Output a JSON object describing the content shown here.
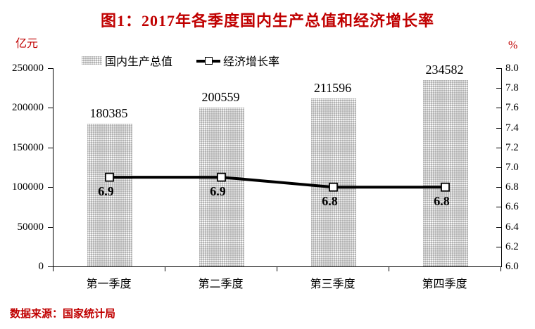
{
  "title": "图1：2017年各季度国内生产总值和经济增长率",
  "source": "数据来源：国家统计局",
  "legend": [
    {
      "label": "国内生产总值",
      "type": "bar",
      "swatch": "gray-stipple"
    },
    {
      "label": "经济增长率",
      "type": "line",
      "swatch": "black-line-square-marker"
    }
  ],
  "colors": {
    "accent_red": "#c00000",
    "bar_fill": "#b3b3b3",
    "line": "#000000",
    "marker_fill": "#ffffff",
    "axis": "#000000"
  },
  "chart_data": {
    "type": "bar",
    "title": "图1：2017年各季度国内生产总值和经济增长率",
    "categories": [
      "第一季度",
      "第二季度",
      "第三季度",
      "第四季度"
    ],
    "series": [
      {
        "name": "国内生产总值",
        "type": "bar",
        "axis": "left",
        "values": [
          180385,
          200559,
          211596,
          234582
        ]
      },
      {
        "name": "经济增长率",
        "type": "line",
        "axis": "right",
        "values": [
          6.9,
          6.9,
          6.8,
          6.8
        ]
      }
    ],
    "left_axis": {
      "label": "亿元",
      "min": 0,
      "max": 250000,
      "step": 50000,
      "ticks": [
        "250000",
        "200000",
        "150000",
        "100000",
        "50000",
        "0"
      ]
    },
    "right_axis": {
      "label": "%",
      "min": 6.0,
      "max": 8.0,
      "step": 0.2,
      "ticks": [
        "8.0",
        "7.8",
        "7.6",
        "7.4",
        "7.2",
        "7.0",
        "6.8",
        "6.6",
        "6.4",
        "6.2",
        "6.0"
      ]
    },
    "grid": false,
    "legend_position": "top-left"
  }
}
